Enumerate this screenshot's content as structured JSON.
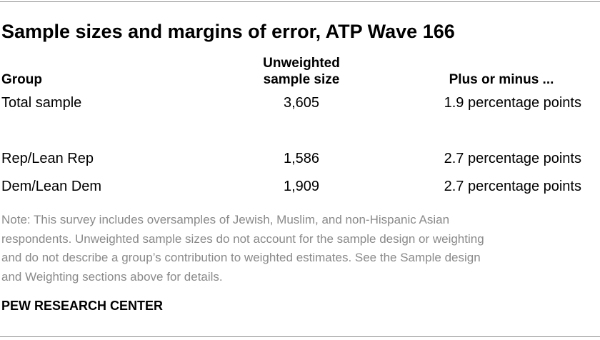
{
  "title": "Sample sizes and margins of error, ATP Wave 166",
  "table": {
    "headers": {
      "group": "Group",
      "size_line1": "Unweighted",
      "size_line2": "sample size",
      "moe": "Plus or minus ..."
    },
    "rows": [
      {
        "group": "Total sample",
        "size": "3,605",
        "moe": "1.9 percentage points"
      },
      {
        "group": "Rep/Lean Rep",
        "size": "1,586",
        "moe": "2.7 percentage points"
      },
      {
        "group": "Dem/Lean Dem",
        "size": "1,909",
        "moe": "2.7 percentage points"
      }
    ]
  },
  "note": {
    "lines": [
      "Note: This survey includes oversamples of Jewish, Muslim, and non-Hispanic Asian",
      "respondents. Unweighted sample sizes do not account for the sample design or weighting",
      "and do not describe a group’s contribution to weighted estimates. See the Sample design",
      "and Weighting sections above for details."
    ]
  },
  "source": "PEW RESEARCH CENTER"
}
